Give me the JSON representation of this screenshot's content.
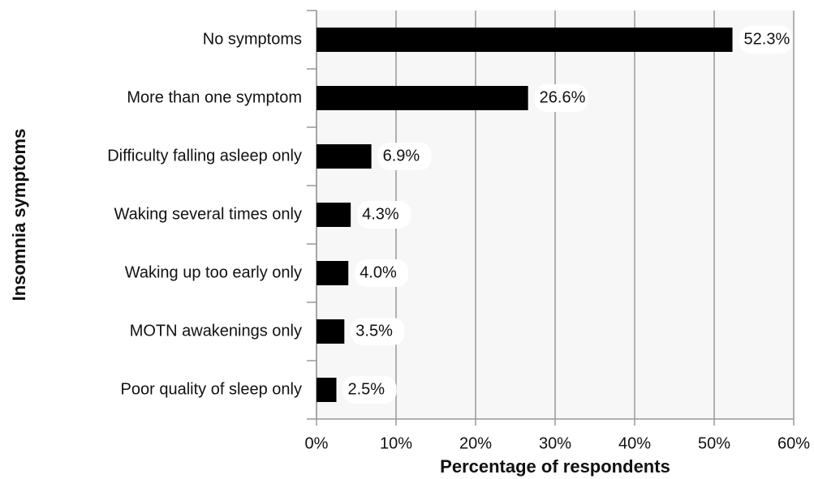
{
  "chart_data": {
    "type": "barh",
    "xlabel": "Percentage of respondents",
    "ylabel": "Insomnia symptoms",
    "categories": [
      "No symptoms",
      "More than one symptom",
      "Difficulty falling asleep only",
      "Waking several times only",
      "Waking up too early only",
      "MOTN awakenings only",
      "Poor quality of sleep only"
    ],
    "values": [
      52.3,
      26.6,
      6.9,
      4.3,
      4.0,
      3.5,
      2.5
    ],
    "value_labels": [
      "52.3%",
      "26.6%",
      "6.9%",
      "4.3%",
      "4.0%",
      "3.5%",
      "2.5%"
    ],
    "color": "#000000",
    "xlim": [
      0,
      60
    ],
    "xticks": [
      {
        "value": 0,
        "label": "0%"
      },
      {
        "value": 10,
        "label": "10%"
      },
      {
        "value": 20,
        "label": "20%"
      },
      {
        "value": 30,
        "label": "30%"
      },
      {
        "value": 40,
        "label": "40%"
      },
      {
        "value": 50,
        "label": "50%"
      },
      {
        "value": 60,
        "label": "60%"
      }
    ],
    "grid": true
  }
}
